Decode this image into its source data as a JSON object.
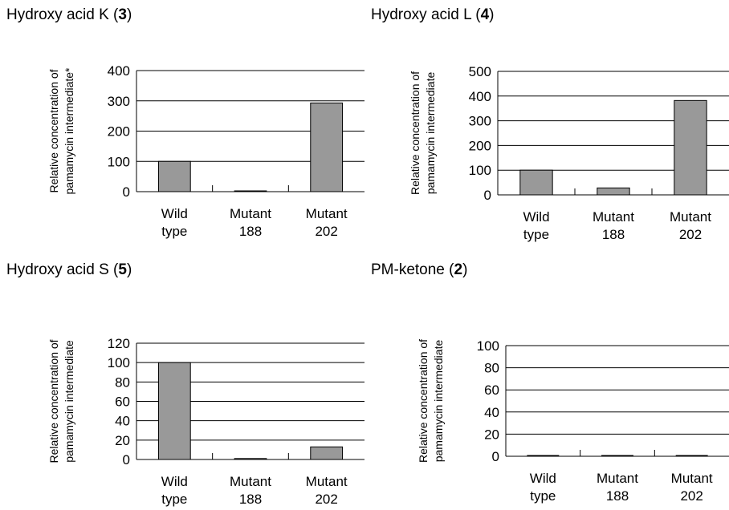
{
  "chart_data": [
    {
      "type": "bar",
      "title": "Hydroxy acid K (3)",
      "title_name": "Hydroxy acid K (",
      "title_number": "3",
      "title_close": ")",
      "ylabel_lines": [
        "Relative concentration of",
        "pamamycin intermediate*"
      ],
      "categories": [
        [
          "Wild",
          "type"
        ],
        [
          "Mutant",
          "188"
        ],
        [
          "Mutant",
          "202"
        ]
      ],
      "values": [
        100,
        2,
        293
      ],
      "ylim": [
        0,
        400
      ],
      "yticks": [
        0,
        100,
        200,
        300,
        400
      ],
      "grid": true,
      "bar_color": "#999999"
    },
    {
      "type": "bar",
      "title": "Hydroxy acid L (4)",
      "title_name": "Hydroxy acid L (",
      "title_number": "4",
      "title_close": ")",
      "ylabel_lines": [
        "Relative concentration of",
        "pamamycin intermediate"
      ],
      "categories": [
        [
          "Wild",
          "type"
        ],
        [
          "Mutant",
          "188"
        ],
        [
          "Mutant",
          "202"
        ]
      ],
      "values": [
        100,
        28,
        382
      ],
      "ylim": [
        0,
        500
      ],
      "yticks": [
        0,
        100,
        200,
        300,
        400,
        500
      ],
      "grid": true,
      "bar_color": "#999999"
    },
    {
      "type": "bar",
      "title": "Hydroxy acid S (5)",
      "title_name": "Hydroxy acid S (",
      "title_number": "5",
      "title_close": ")",
      "ylabel_lines": [
        "Relative concentration of",
        "pamamycin intermediate"
      ],
      "categories": [
        [
          "Wild",
          "type"
        ],
        [
          "Mutant",
          "188"
        ],
        [
          "Mutant",
          "202"
        ]
      ],
      "values": [
        100,
        1,
        13
      ],
      "ylim": [
        0,
        120
      ],
      "yticks": [
        0,
        20,
        40,
        60,
        80,
        100,
        120
      ],
      "grid": true,
      "bar_color": "#999999"
    },
    {
      "type": "bar",
      "title": "PM-ketone (2)",
      "title_name": "PM-ketone (",
      "title_number": "2",
      "title_close": ")",
      "ylabel_lines": [
        "Relative concentration of",
        "pamamycin intermediate"
      ],
      "categories": [
        [
          "Wild",
          "type"
        ],
        [
          "Mutant",
          "188"
        ],
        [
          "Mutant",
          "202"
        ]
      ],
      "values": [
        0.5,
        0.5,
        0.5
      ],
      "ylim": [
        0,
        100
      ],
      "yticks": [
        0,
        20,
        40,
        60,
        80,
        100
      ],
      "grid": true,
      "bar_color": "#999999"
    }
  ]
}
